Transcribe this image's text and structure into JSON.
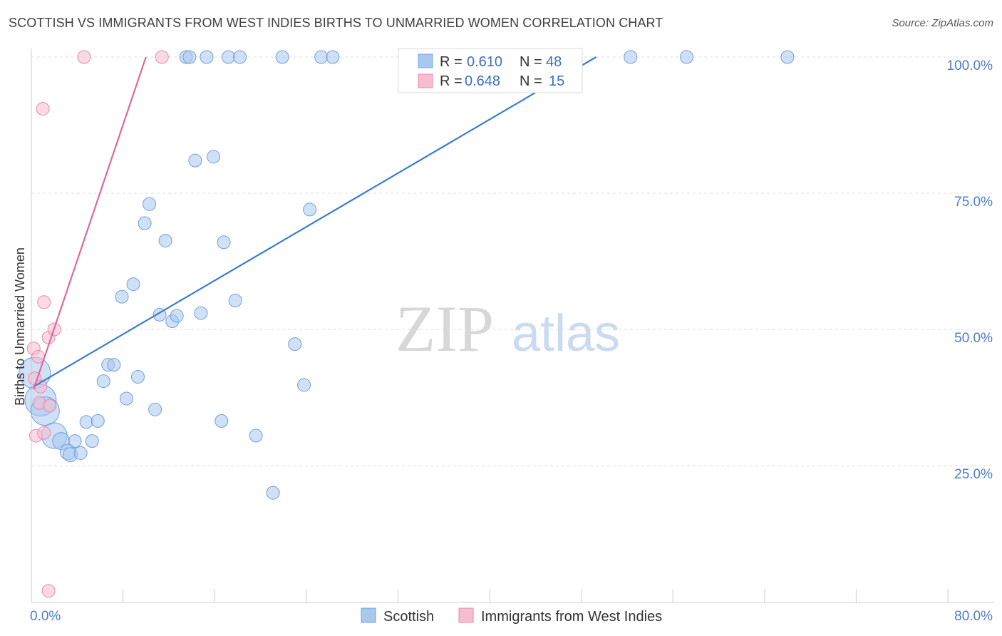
{
  "title": "SCOTTISH VS IMMIGRANTS FROM WEST INDIES BIRTHS TO UNMARRIED WOMEN CORRELATION CHART",
  "source": "Source: ZipAtlas.com",
  "watermark": {
    "zip": "ZIP",
    "atlas": "atlas"
  },
  "legend": {
    "rows": [
      {
        "r_label": "R =",
        "r_value": "0.610",
        "n_label": "N =",
        "n_value": "48",
        "color": "#a9c8f0",
        "stroke": "#7aa6e0"
      },
      {
        "r_label": "R =",
        "r_value": "0.648",
        "n_label": "N =",
        "n_value": "15",
        "color": "#f7bcd0",
        "stroke": "#e88aa8"
      }
    ]
  },
  "bottom_legend": [
    "Scottish",
    "Immigrants from West Indies"
  ],
  "chart_data": {
    "type": "scatter",
    "xlabel": "",
    "ylabel": "Births to Unmarried Women",
    "xlim": [
      0,
      80
    ],
    "ylim": [
      0,
      105
    ],
    "x_tick_labels": [
      {
        "value": 0,
        "label": "0.0%"
      },
      {
        "value": 80,
        "label": "80.0%"
      }
    ],
    "y_tick_labels": [
      {
        "value": 100,
        "label": "100.0%"
      },
      {
        "value": 75,
        "label": "75.0%"
      },
      {
        "value": 50,
        "label": "50.0%"
      },
      {
        "value": 25,
        "label": "25.0%"
      }
    ],
    "x_minor_ticks": [
      8,
      16,
      24,
      32,
      40,
      48,
      56,
      64,
      72,
      80
    ],
    "grid": true,
    "series": [
      {
        "name": "Scottish",
        "color": "#a9c8f0",
        "stroke": "#6f9fdc",
        "line_color": "#3b7bd4",
        "trend": [
          [
            0.2,
            39.5
          ],
          [
            49.3,
            100
          ]
        ],
        "points": [
          [
            0.3,
            42.0,
            22
          ],
          [
            0.8,
            37.0,
            22
          ],
          [
            1.2,
            35.0,
            20
          ],
          [
            2.0,
            30.5,
            18
          ],
          [
            2.6,
            29.5,
            12
          ],
          [
            3.2,
            27.5,
            11
          ],
          [
            3.4,
            27.0,
            10
          ],
          [
            3.8,
            29.5,
            9
          ],
          [
            4.3,
            27.3,
            9
          ],
          [
            4.8,
            33.0,
            9
          ],
          [
            5.3,
            29.5,
            9
          ],
          [
            5.8,
            33.2,
            9
          ],
          [
            6.3,
            40.5,
            9
          ],
          [
            6.7,
            43.5,
            9
          ],
          [
            7.2,
            43.5,
            9
          ],
          [
            7.9,
            56.0,
            9
          ],
          [
            8.3,
            37.3,
            9
          ],
          [
            8.9,
            58.3,
            9
          ],
          [
            9.3,
            41.3,
            9
          ],
          [
            9.9,
            69.5,
            9
          ],
          [
            10.3,
            73.0,
            9
          ],
          [
            10.8,
            35.3,
            9
          ],
          [
            11.2,
            52.7,
            9
          ],
          [
            11.7,
            66.3,
            9
          ],
          [
            12.3,
            51.5,
            9
          ],
          [
            12.7,
            52.5,
            9
          ],
          [
            13.5,
            100,
            9
          ],
          [
            13.8,
            100,
            9
          ],
          [
            14.3,
            81.0,
            9
          ],
          [
            14.8,
            53.0,
            9
          ],
          [
            15.3,
            100,
            9
          ],
          [
            15.9,
            81.7,
            9
          ],
          [
            16.6,
            33.2,
            9
          ],
          [
            16.8,
            66.0,
            9
          ],
          [
            17.2,
            100,
            9
          ],
          [
            17.8,
            55.3,
            9
          ],
          [
            18.2,
            100,
            9
          ],
          [
            19.6,
            30.5,
            9
          ],
          [
            21.1,
            20.0,
            9
          ],
          [
            21.9,
            100,
            9
          ],
          [
            23.0,
            47.3,
            9
          ],
          [
            23.8,
            39.8,
            9
          ],
          [
            24.3,
            72.0,
            9
          ],
          [
            25.3,
            100,
            9
          ],
          [
            26.3,
            100,
            9
          ],
          [
            52.3,
            100,
            9
          ],
          [
            57.2,
            100,
            9
          ],
          [
            66.0,
            100,
            9
          ]
        ]
      },
      {
        "name": "Immigrants from West Indies",
        "color": "#f7bcd0",
        "stroke": "#e88aa8",
        "line_color": "#e0689a",
        "trend": [
          [
            0.2,
            39.0
          ],
          [
            10.0,
            100
          ]
        ],
        "points": [
          [
            0.2,
            46.5,
            9
          ],
          [
            0.3,
            41.0,
            9
          ],
          [
            0.4,
            30.5,
            9
          ],
          [
            0.6,
            45.0,
            9
          ],
          [
            0.7,
            36.5,
            9
          ],
          [
            0.8,
            39.5,
            9
          ],
          [
            1.0,
            90.5,
            9
          ],
          [
            1.1,
            31.0,
            9
          ],
          [
            1.1,
            55.0,
            9
          ],
          [
            1.5,
            48.5,
            9
          ],
          [
            1.5,
            2.0,
            9
          ],
          [
            1.6,
            36.0,
            9
          ],
          [
            2.0,
            50.0,
            9
          ],
          [
            4.6,
            100,
            9
          ],
          [
            11.4,
            100,
            9
          ]
        ]
      }
    ]
  }
}
